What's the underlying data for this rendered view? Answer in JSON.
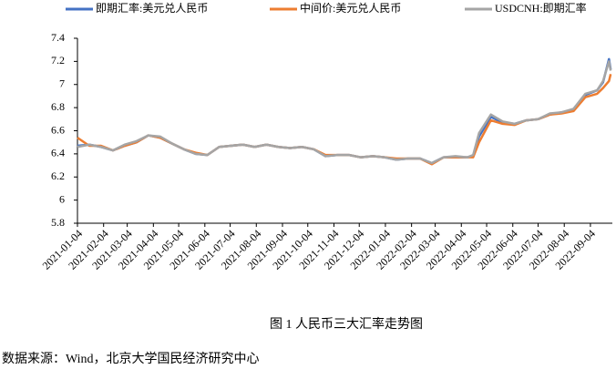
{
  "chart_data": {
    "type": "line",
    "caption": "图 1 人民币三大汇率走势图",
    "source": "数据来源：Wind，北京大学国民经济研究中心",
    "x": [
      "2021-01-04",
      "2021-01-18",
      "2021-02-01",
      "2021-02-15",
      "2021-03-01",
      "2021-03-15",
      "2021-03-29",
      "2021-04-12",
      "2021-04-26",
      "2021-05-10",
      "2021-05-24",
      "2021-06-07",
      "2021-06-21",
      "2021-07-05",
      "2021-07-19",
      "2021-08-02",
      "2021-08-16",
      "2021-08-30",
      "2021-09-13",
      "2021-09-27",
      "2021-10-11",
      "2021-10-25",
      "2021-11-08",
      "2021-11-22",
      "2021-12-06",
      "2021-12-20",
      "2022-01-03",
      "2022-01-17",
      "2022-01-31",
      "2022-02-14",
      "2022-02-28",
      "2022-03-14",
      "2022-03-28",
      "2022-04-11",
      "2022-04-18",
      "2022-04-25",
      "2022-05-09",
      "2022-05-23",
      "2022-06-06",
      "2022-06-20",
      "2022-07-04",
      "2022-07-18",
      "2022-08-01",
      "2022-08-15",
      "2022-08-29",
      "2022-09-12",
      "2022-09-19",
      "2022-09-26",
      "2022-09-28"
    ],
    "series": [
      {
        "name": "即期汇率:美元兑人民币",
        "color": "#4472c4",
        "values": [
          6.47,
          6.48,
          6.46,
          6.43,
          6.47,
          6.5,
          6.56,
          6.54,
          6.49,
          6.44,
          6.4,
          6.39,
          6.46,
          6.47,
          6.48,
          6.46,
          6.48,
          6.46,
          6.45,
          6.46,
          6.44,
          6.38,
          6.39,
          6.39,
          6.37,
          6.38,
          6.37,
          6.35,
          6.36,
          6.36,
          6.32,
          6.37,
          6.37,
          6.37,
          6.38,
          6.55,
          6.72,
          6.67,
          6.66,
          6.69,
          6.7,
          6.74,
          6.76,
          6.78,
          6.91,
          6.95,
          7.02,
          7.22,
          7.13
        ]
      },
      {
        "name": "中间价:美元兑人民币",
        "color": "#ed7d31",
        "values": [
          6.54,
          6.47,
          6.47,
          6.43,
          6.47,
          6.5,
          6.56,
          6.54,
          6.49,
          6.44,
          6.41,
          6.39,
          6.46,
          6.47,
          6.48,
          6.46,
          6.48,
          6.46,
          6.45,
          6.46,
          6.44,
          6.39,
          6.39,
          6.39,
          6.37,
          6.38,
          6.37,
          6.36,
          6.36,
          6.36,
          6.31,
          6.37,
          6.37,
          6.37,
          6.37,
          6.5,
          6.69,
          6.66,
          6.65,
          6.69,
          6.7,
          6.74,
          6.75,
          6.77,
          6.89,
          6.92,
          6.97,
          7.03,
          7.09
        ]
      },
      {
        "name": "USDCNH:即期汇率",
        "color": "#a5a5a5",
        "values": [
          6.46,
          6.48,
          6.46,
          6.43,
          6.48,
          6.51,
          6.56,
          6.55,
          6.49,
          6.44,
          6.4,
          6.39,
          6.46,
          6.47,
          6.48,
          6.46,
          6.48,
          6.46,
          6.45,
          6.46,
          6.44,
          6.38,
          6.39,
          6.39,
          6.37,
          6.38,
          6.37,
          6.35,
          6.36,
          6.36,
          6.32,
          6.37,
          6.38,
          6.37,
          6.39,
          6.58,
          6.74,
          6.68,
          6.66,
          6.69,
          6.7,
          6.75,
          6.76,
          6.79,
          6.92,
          6.95,
          7.03,
          7.2,
          7.12
        ]
      }
    ],
    "xlim": [
      "2021-01-04",
      "2022-09-30"
    ],
    "xticks": [
      "2021-01-04",
      "2021-02-04",
      "2021-03-04",
      "2021-04-04",
      "2021-05-04",
      "2021-06-04",
      "2021-07-04",
      "2021-08-04",
      "2021-09-04",
      "2021-10-04",
      "2021-11-04",
      "2021-12-04",
      "2022-01-04",
      "2022-02-04",
      "2022-03-04",
      "2022-04-04",
      "2022-05-04",
      "2022-06-04",
      "2022-07-04",
      "2022-08-04",
      "2022-09-04"
    ],
    "ylim": [
      5.8,
      7.4
    ],
    "yticks": [
      5.8,
      6,
      6.2,
      6.4,
      6.6,
      6.8,
      7,
      7.2,
      7.4
    ]
  }
}
